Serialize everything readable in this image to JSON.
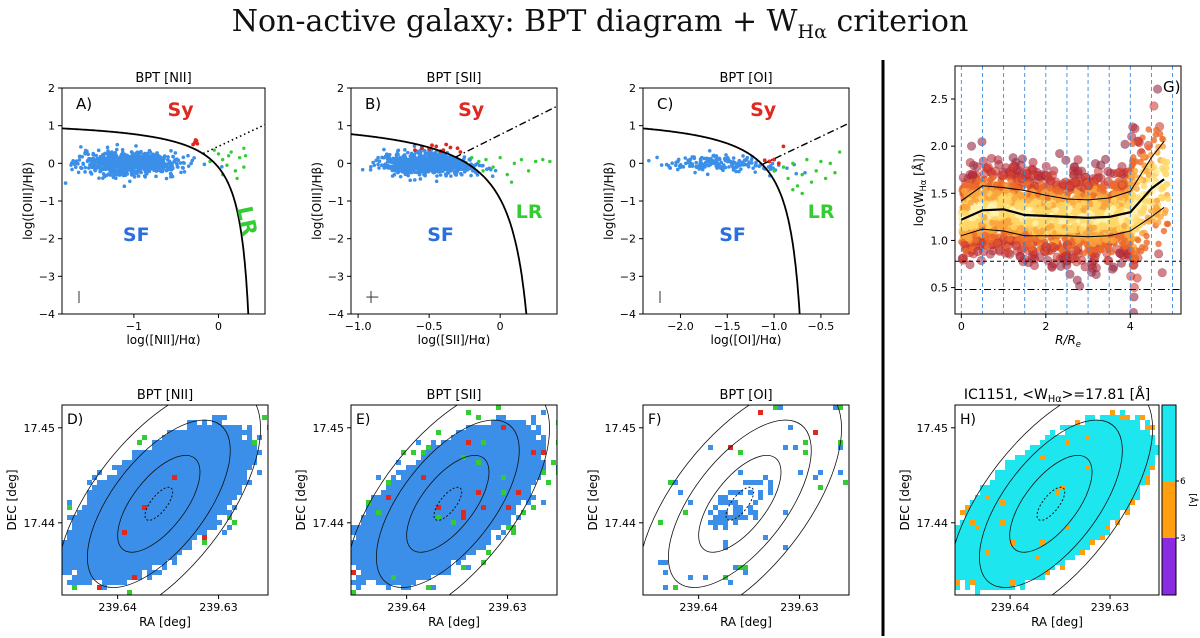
{
  "figure_title_main": "Non-active galaxy: BPT diagram + W",
  "figure_title_sub": "Hα",
  "figure_title_tail": " criterion",
  "chart_data": [
    {
      "type": "scatter",
      "panel": "A)",
      "title": "BPT [NII]",
      "xlabel": "log([NII]/Hα)",
      "ylabel": "log([OIII]/Hβ)",
      "xlim": [
        -1.85,
        0.55
      ],
      "ylim": [
        -4,
        2
      ],
      "xticks": [
        -1,
        0
      ],
      "yticks": [
        -4,
        -3,
        -2,
        -1,
        0,
        1,
        2
      ],
      "region_labels": {
        "Sy": "Sy",
        "SF": "SF",
        "LR": "LR"
      },
      "series": [
        {
          "name": "SF",
          "color": "#3b8fe8",
          "approx_n": 800,
          "center": [
            -1.05,
            0.0
          ],
          "spread": [
            0.28,
            0.15
          ]
        },
        {
          "name": "Sy",
          "color": "#e0281e",
          "points": [
            [
              -0.28,
              0.55
            ],
            [
              -0.26,
              0.6
            ],
            [
              -0.3,
              0.5
            ],
            [
              -0.25,
              0.52
            ],
            [
              -0.27,
              0.62
            ]
          ]
        },
        {
          "name": "LR",
          "color": "#33cc33",
          "points": [
            [
              0.0,
              0.25
            ],
            [
              0.05,
              0.1
            ],
            [
              0.1,
              -0.05
            ],
            [
              0.15,
              0.3
            ],
            [
              0.2,
              -0.2
            ],
            [
              0.25,
              0.15
            ],
            [
              0.3,
              0.4
            ],
            [
              0.05,
              -0.3
            ],
            [
              -0.05,
              0.35
            ],
            [
              0.12,
              0.2
            ],
            [
              0.22,
              -0.4
            ],
            [
              0.3,
              -0.1
            ],
            [
              0.32,
              0.2
            ],
            [
              -0.1,
              0.05
            ]
          ]
        }
      ]
    },
    {
      "type": "scatter",
      "panel": "B)",
      "title": "BPT [SII]",
      "xlabel": "log([SII]/Hα)",
      "ylabel": "log([OIII]/Hβ)",
      "xlim": [
        -1.05,
        0.4
      ],
      "ylim": [
        -4,
        2
      ],
      "xticks": [
        -1.0,
        -0.5,
        0.0
      ],
      "yticks": [
        -4,
        -3,
        -2,
        -1,
        0,
        1,
        2
      ],
      "region_labels": {
        "Sy": "Sy",
        "SF": "SF",
        "LR": "LR"
      },
      "series": [
        {
          "name": "SF",
          "color": "#3b8fe8",
          "approx_n": 800,
          "center": [
            -0.5,
            0.0
          ],
          "spread": [
            0.16,
            0.15
          ]
        },
        {
          "name": "Sy",
          "color": "#e0281e",
          "points": [
            [
              -0.55,
              0.4
            ],
            [
              -0.5,
              0.38
            ],
            [
              -0.45,
              0.45
            ],
            [
              -0.4,
              0.35
            ],
            [
              -0.35,
              0.42
            ],
            [
              -0.3,
              0.4
            ],
            [
              -0.6,
              0.35
            ],
            [
              -0.48,
              0.48
            ],
            [
              -0.38,
              0.5
            ],
            [
              -0.28,
              0.3
            ],
            [
              -0.42,
              0.32
            ]
          ]
        },
        {
          "name": "LR",
          "color": "#33cc33",
          "points": [
            [
              -0.15,
              0.05
            ],
            [
              -0.1,
              0.1
            ],
            [
              -0.05,
              -0.1
            ],
            [
              0.0,
              0.15
            ],
            [
              0.05,
              -0.3
            ],
            [
              0.1,
              0.0
            ],
            [
              0.15,
              0.1
            ],
            [
              0.2,
              -0.2
            ],
            [
              0.25,
              0.05
            ],
            [
              0.3,
              0.1
            ],
            [
              -0.12,
              -0.2
            ],
            [
              -0.2,
              0.15
            ],
            [
              0.08,
              -0.5
            ],
            [
              0.35,
              0.05
            ]
          ]
        }
      ]
    },
    {
      "type": "scatter",
      "panel": "C)",
      "title": "BPT [OI]",
      "xlabel": "log([OI]/Hα)",
      "ylabel": "log([OIII]/Hβ)",
      "xlim": [
        -2.4,
        -0.2
      ],
      "ylim": [
        -4,
        2
      ],
      "xticks": [
        -2.0,
        -1.5,
        -1.0,
        -0.5
      ],
      "yticks": [
        -4,
        -3,
        -2,
        -1,
        0,
        1,
        2
      ],
      "region_labels": {
        "Sy": "Sy",
        "SF": "SF",
        "LR": "LR"
      },
      "series": [
        {
          "name": "SF",
          "color": "#3b8fe8",
          "approx_n": 180,
          "center": [
            -1.55,
            0.0
          ],
          "spread": [
            0.3,
            0.1
          ]
        },
        {
          "name": "Sy",
          "color": "#e0281e",
          "points": [
            [
              -1.05,
              0.05
            ],
            [
              -1.0,
              0.1
            ],
            [
              -0.95,
              0.0
            ],
            [
              -0.9,
              0.45
            ],
            [
              -1.1,
              0.08
            ]
          ]
        },
        {
          "name": "LR",
          "color": "#33cc33",
          "points": [
            [
              -1.0,
              -0.2
            ],
            [
              -0.9,
              -0.1
            ],
            [
              -0.85,
              -0.4
            ],
            [
              -0.8,
              0.0
            ],
            [
              -0.75,
              -0.6
            ],
            [
              -0.7,
              -0.3
            ],
            [
              -0.65,
              0.1
            ],
            [
              -0.6,
              -0.5
            ],
            [
              -0.55,
              -0.2
            ],
            [
              -0.5,
              0.05
            ],
            [
              -0.45,
              -0.4
            ],
            [
              -0.4,
              0.0
            ],
            [
              -0.35,
              -0.25
            ],
            [
              -0.3,
              0.3
            ],
            [
              -0.8,
              -0.7
            ],
            [
              -0.7,
              -0.8
            ]
          ]
        }
      ]
    },
    {
      "type": "scatter",
      "panel": "G)",
      "title": "",
      "xlabel": "R/R",
      "xlabel_sub": "e",
      "ylabel": "log(W",
      "ylabel_sub": "Hα",
      "ylabel_tail": " [Å])",
      "xlim": [
        -0.15,
        5.2
      ],
      "ylim": [
        0.22,
        2.85
      ],
      "xticks": [
        0,
        2,
        4
      ],
      "yticks": [
        0.5,
        1.0,
        1.5,
        2.0,
        2.5
      ],
      "reference_lines": {
        "dashed": 0.78,
        "dashdot": 0.48
      },
      "vertical_bins": [
        0,
        0.5,
        1.0,
        1.5,
        2.0,
        2.5,
        3.0,
        3.5,
        4.0,
        4.5,
        5.0
      ],
      "profile": {
        "r": [
          0.0,
          0.5,
          1.0,
          1.5,
          2.0,
          2.5,
          3.0,
          3.5,
          4.0,
          4.5,
          4.8
        ],
        "median": [
          1.22,
          1.32,
          1.33,
          1.27,
          1.26,
          1.25,
          1.24,
          1.25,
          1.3,
          1.55,
          1.65
        ],
        "p84": [
          1.42,
          1.58,
          1.56,
          1.53,
          1.48,
          1.44,
          1.43,
          1.45,
          1.52,
          1.88,
          2.05
        ],
        "p16": [
          1.05,
          1.12,
          1.1,
          1.05,
          1.05,
          1.05,
          1.04,
          1.05,
          1.1,
          1.25,
          1.35
        ]
      }
    },
    {
      "type": "heatmap",
      "panel": "D)",
      "title": "BPT [NII]",
      "xlabel": "RA [deg]",
      "ylabel": "DEC [deg]",
      "xticks": [
        "239.64",
        "239.63"
      ],
      "yticks": [
        "17.45",
        "17.44"
      ]
    },
    {
      "type": "heatmap",
      "panel": "E)",
      "title": "BPT [SII]",
      "xlabel": "RA [deg]",
      "ylabel": "DEC [deg]",
      "xticks": [
        "239.64",
        "239.63"
      ],
      "yticks": [
        "17.45",
        "17.44"
      ]
    },
    {
      "type": "heatmap",
      "panel": "F)",
      "title": "BPT [OI]",
      "xlabel": "RA [deg]",
      "ylabel": "DEC [deg]",
      "xticks": [
        "239.64",
        "239.63"
      ],
      "yticks": [
        "17.45",
        "17.44"
      ]
    },
    {
      "type": "heatmap",
      "panel": "H)",
      "title": "IC1151, <W",
      "title_sub": "Hα",
      "title_tail": ">=17.81 [Å]",
      "xlabel": "RA [deg]",
      "ylabel": "DEC [deg]",
      "xticks": [
        "239.64",
        "239.63"
      ],
      "yticks": [
        "17.45",
        "17.44"
      ],
      "colorbar": {
        "label": "[Å]",
        "ticks": [
          "6",
          "3"
        ],
        "bands": [
          {
            "from": 6,
            "to": 10,
            "color": "#1ee6ee"
          },
          {
            "from": 3,
            "to": 6,
            "color": "#ff9f10"
          },
          {
            "from": 0,
            "to": 3,
            "color": "#8a2be2"
          }
        ]
      }
    }
  ],
  "colors": {
    "sf": "#3b8fe8",
    "sy": "#e0281e",
    "lr": "#33cc33",
    "cyan": "#1ee6ee",
    "orange": "#ff9f10",
    "purple": "#8a2be2",
    "label_sy": "#e0281e",
    "label_sf": "#2a6fe0",
    "label_lr": "#33cc33"
  }
}
